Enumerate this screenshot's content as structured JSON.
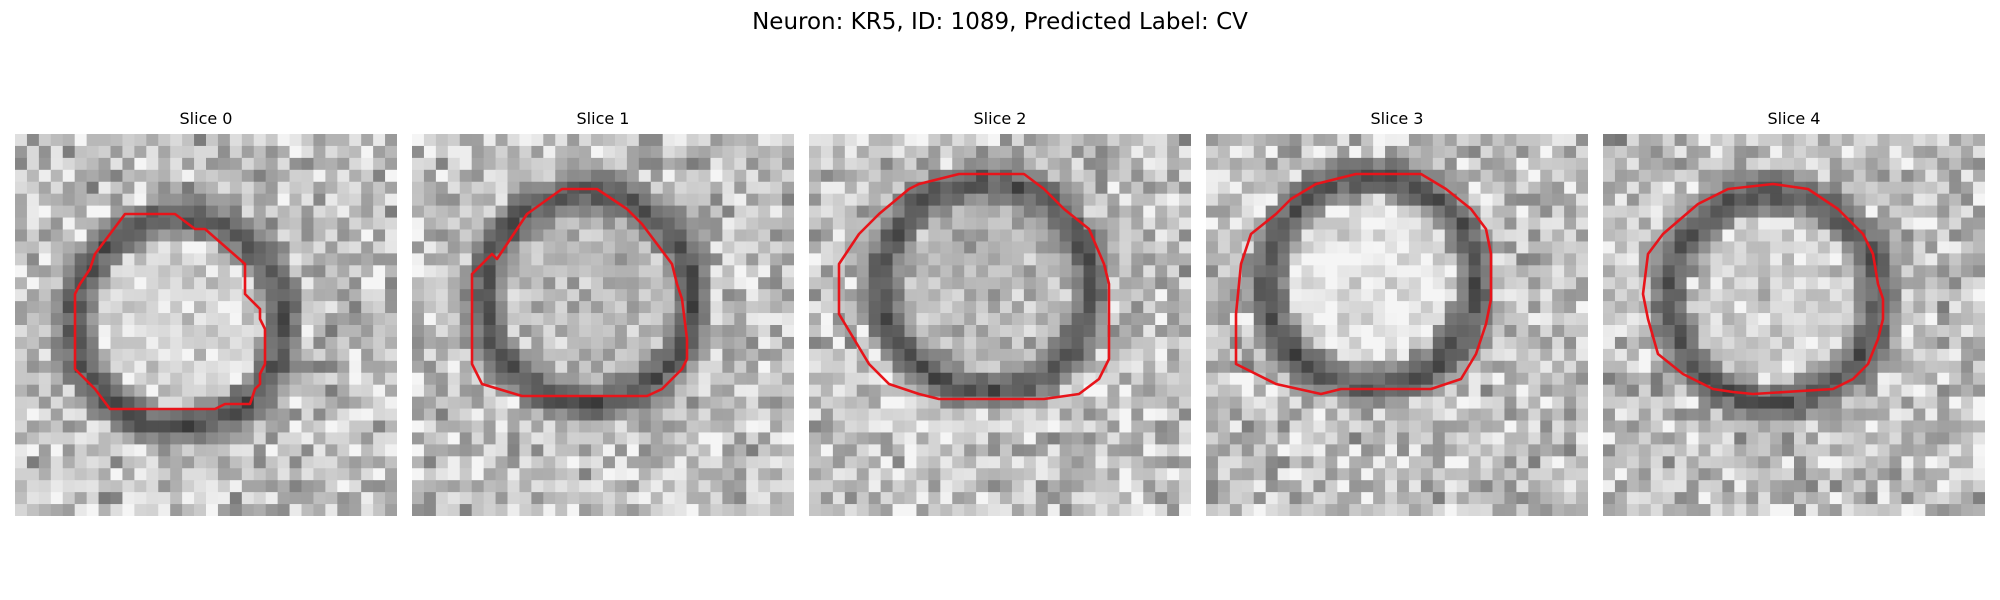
{
  "figure": {
    "title": "Neuron: KR5, ID: 1089, Predicted Label: CV"
  },
  "panels": [
    {
      "title": "Slice 0"
    },
    {
      "title": "Slice 1"
    },
    {
      "title": "Slice 2"
    },
    {
      "title": "Slice 3"
    },
    {
      "title": "Slice 4"
    }
  ],
  "colors": {
    "contour": "#e8141a",
    "background": "#ffffff"
  }
}
